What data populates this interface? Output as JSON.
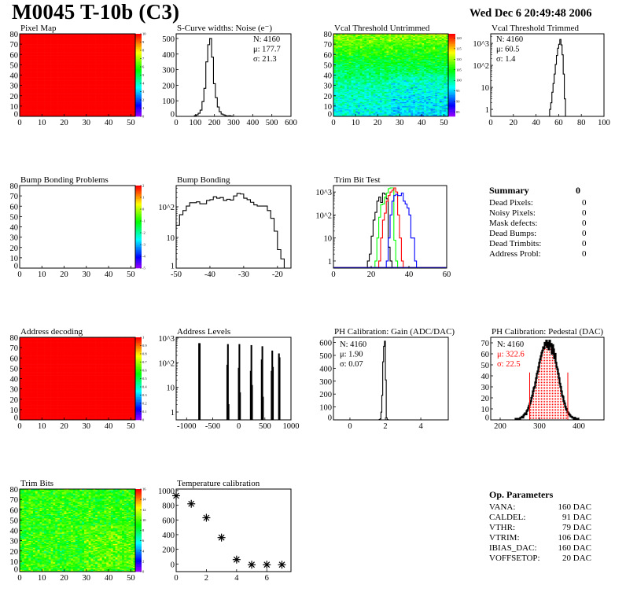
{
  "header": {
    "title": "M0045 T-10b (C3)",
    "date": "Wed Dec  6 20:49:48 2006"
  },
  "summary": {
    "title": "Summary",
    "total": "0",
    "rows": [
      {
        "label": "Dead Pixels:",
        "value": "0"
      },
      {
        "label": "Noisy Pixels:",
        "value": "0"
      },
      {
        "label": "Mask defects:",
        "value": "0"
      },
      {
        "label": "Dead Bumps:",
        "value": "0"
      },
      {
        "label": "Dead Trimbits:",
        "value": "0"
      },
      {
        "label": "Address Probl:",
        "value": "0"
      }
    ]
  },
  "op_parameters": {
    "title": "Op. Parameters",
    "rows": [
      {
        "label": "VANA:",
        "value": "160 DAC"
      },
      {
        "label": "CALDEL:",
        "value": "91 DAC"
      },
      {
        "label": "VTHR:",
        "value": "79 DAC"
      },
      {
        "label": "VTRIM:",
        "value": "106 DAC"
      },
      {
        "label": "IBIAS_DAC:",
        "value": "160 DAC"
      },
      {
        "label": "VOFFSETOP:",
        "value": "20 DAC"
      }
    ]
  },
  "colors": {
    "histogram": "#000000",
    "fit": "#ff0000",
    "trim_series": [
      "#000000",
      "#00ff00",
      "#ff0000",
      "#0000ff"
    ]
  },
  "chart_data": [
    {
      "id": "pixel-map",
      "type": "heatmap",
      "title": "Pixel Map",
      "xlim": [
        0,
        52
      ],
      "ylim": [
        0,
        80
      ],
      "xticks": [
        0,
        10,
        20,
        30,
        40,
        50
      ],
      "yticks": [
        0,
        10,
        20,
        30,
        40,
        50,
        60,
        70,
        80
      ],
      "zlim": [
        0,
        10
      ],
      "zticks": [
        0,
        1,
        2,
        3,
        4,
        5,
        6,
        7,
        8,
        9,
        10
      ],
      "uniform_value": 10
    },
    {
      "id": "noise",
      "type": "bar",
      "title": "S-Curve widths: Noise (e⁻)",
      "xlim": [
        0,
        600
      ],
      "ylim": [
        0,
        530
      ],
      "xticks": [
        0,
        100,
        200,
        300,
        400,
        500,
        600
      ],
      "yticks": [
        0,
        100,
        200,
        300,
        400,
        500
      ],
      "bin_width": 10,
      "bin_start": 95,
      "values": [
        5,
        10,
        20,
        40,
        95,
        180,
        350,
        460,
        500,
        380,
        210,
        120,
        60,
        30,
        15,
        10,
        5,
        3,
        4,
        2
      ],
      "stats": [
        "N: 4160",
        "μ: 177.7",
        "σ: 21.3"
      ]
    },
    {
      "id": "vcal-untrimmed",
      "type": "heatmap",
      "title": "Vcal Threshold Untrimmed",
      "xlim": [
        0,
        52
      ],
      "ylim": [
        0,
        80
      ],
      "xticks": [
        0,
        10,
        20,
        30,
        40,
        50
      ],
      "yticks": [
        0,
        10,
        20,
        30,
        40,
        50,
        60,
        70,
        80
      ],
      "zlim": [
        83,
        122
      ],
      "zticks": [
        85,
        90,
        95,
        100,
        105,
        110,
        115,
        120
      ],
      "z_bottom_mean": 97,
      "z_top_mean": 110
    },
    {
      "id": "vcal-trimmed",
      "type": "bar",
      "title": "Vcal Threshold Trimmed",
      "log_y": true,
      "xlim": [
        0,
        100
      ],
      "ylim": [
        0.48,
        2700
      ],
      "xticks": [
        0,
        20,
        40,
        60,
        80,
        100
      ],
      "yticks": [
        1,
        10,
        100,
        1000
      ],
      "ytick_labels": [
        "1",
        "10",
        "10^2",
        "10^3"
      ],
      "bin_width": 1,
      "bin_start": 52,
      "values": [
        1,
        2,
        6,
        15,
        40,
        110,
        280,
        600,
        900,
        1500,
        850,
        300,
        40,
        3
      ],
      "stats": [
        "N: 4160",
        "μ: 60.5",
        "σ:  1.4"
      ]
    },
    {
      "id": "bump-problems",
      "type": "heatmap",
      "title": "Bump Bonding Problems",
      "xlim": [
        0,
        52
      ],
      "ylim": [
        0,
        80
      ],
      "xticks": [
        0,
        10,
        20,
        30,
        40,
        50
      ],
      "yticks": [
        0,
        10,
        20,
        30,
        40,
        50,
        60,
        70,
        80
      ],
      "zlim": [
        -5,
        2
      ],
      "zticks": [
        -5,
        -4,
        -3,
        -2,
        -1,
        0,
        1,
        2
      ],
      "empty": true
    },
    {
      "id": "bump-bonding",
      "type": "bar",
      "title": "Bump Bonding",
      "log_y": true,
      "xlim": [
        -50,
        -16
      ],
      "ylim": [
        1,
        490
      ],
      "xticks": [
        -50,
        -40,
        -30,
        -20
      ],
      "yticks": [
        1,
        10,
        100
      ],
      "ytick_labels": [
        "1",
        "10",
        "10^2"
      ],
      "bin_width": 1,
      "bin_start": -50,
      "values": [
        25,
        55,
        75,
        105,
        135,
        135,
        145,
        125,
        125,
        160,
        170,
        210,
        190,
        200,
        160,
        175,
        165,
        225,
        270,
        260,
        190,
        170,
        140,
        115,
        105,
        105,
        105,
        75,
        42,
        16,
        4,
        2
      ]
    },
    {
      "id": "trim-bit-test",
      "type": "bar",
      "title": "Trim Bit Test",
      "log_y": true,
      "xlim": [
        0,
        60
      ],
      "ylim": [
        0.49,
        1900
      ],
      "xticks": [
        0,
        20,
        40,
        60
      ],
      "yticks": [
        1,
        10,
        100,
        1000
      ],
      "ytick_labels": [
        "1",
        "10",
        "10^2",
        "10^3"
      ],
      "bin_width": 1,
      "series": [
        {
          "start": 18,
          "values": [
            1,
            2,
            12,
            60,
            130,
            400,
            600,
            350,
            900,
            800,
            500,
            4,
            1
          ]
        },
        {
          "start": 22,
          "values": [
            1,
            10,
            80,
            280,
            300,
            600,
            900,
            1400,
            1500,
            1500,
            8,
            1
          ]
        },
        {
          "start": 24,
          "values": [
            1,
            10,
            60,
            120,
            400,
            700,
            1000,
            1200,
            1500,
            1000,
            100,
            10,
            1
          ]
        },
        {
          "start": 28,
          "values": [
            1,
            10,
            100,
            400,
            700,
            800,
            700,
            700,
            900,
            400,
            300,
            200,
            100,
            10,
            10,
            1
          ]
        }
      ]
    },
    {
      "id": "address-decoding",
      "type": "heatmap",
      "title": "Address decoding",
      "xlim": [
        0,
        52
      ],
      "ylim": [
        0,
        80
      ],
      "xticks": [
        0,
        10,
        20,
        30,
        40,
        50
      ],
      "yticks": [
        0,
        10,
        20,
        30,
        40,
        50,
        60,
        70,
        80
      ],
      "zlim": [
        0,
        1
      ],
      "zticks": [
        0,
        0.1,
        0.2,
        0.3,
        0.4,
        0.5,
        0.6,
        0.7,
        0.8,
        0.9,
        1
      ],
      "uniform_value": 1
    },
    {
      "id": "address-levels",
      "type": "bar",
      "title": "Address Levels",
      "log_y": true,
      "xlim": [
        -1200,
        1000
      ],
      "ylim": [
        0.48,
        1080
      ],
      "xticks": [
        -1000,
        -500,
        0,
        500,
        1000
      ],
      "yticks": [
        1,
        10,
        100,
        1000
      ],
      "ytick_labels": [
        "1",
        "10",
        "10^2",
        "10^3"
      ],
      "bin_width": 12,
      "bins": [
        {
          "x": -762,
          "v": 600
        },
        {
          "x": -750,
          "v": 600
        },
        {
          "x": -222,
          "v": 80
        },
        {
          "x": -210,
          "v": 550
        },
        {
          "x": -198,
          "v": 2
        },
        {
          "x": -2,
          "v": 60
        },
        {
          "x": 10,
          "v": 550
        },
        {
          "x": 22,
          "v": 6
        },
        {
          "x": 228,
          "v": 45
        },
        {
          "x": 240,
          "v": 500
        },
        {
          "x": 252,
          "v": 12
        },
        {
          "x": 438,
          "v": 130
        },
        {
          "x": 450,
          "v": 450
        },
        {
          "x": 462,
          "v": 4
        },
        {
          "x": 628,
          "v": 45
        },
        {
          "x": 640,
          "v": 300
        },
        {
          "x": 652,
          "v": 65
        },
        {
          "x": 768,
          "v": 230
        },
        {
          "x": 780,
          "v": 160
        }
      ]
    },
    {
      "id": "ph-gain",
      "type": "bar",
      "title": "PH Calibration: Gain (ADC/DAC)",
      "xlim": [
        -0.93,
        5.55
      ],
      "ylim": [
        0,
        640
      ],
      "xticks": [
        0,
        2,
        4
      ],
      "yticks": [
        0,
        100,
        200,
        300,
        400,
        500,
        600
      ],
      "bin_width": 0.05,
      "bin_start": 1.65,
      "values": [
        3,
        8,
        60,
        190,
        450,
        570,
        610,
        310,
        15,
        2
      ],
      "stats": [
        "N: 4160",
        "μ: 1.90",
        "σ: 0.07"
      ]
    },
    {
      "id": "ph-pedestal",
      "type": "bar",
      "title": "PH Calibration: Pedestal (DAC)",
      "xlim": [
        176,
        464
      ],
      "ylim": [
        0,
        75
      ],
      "xticks": [
        200,
        300,
        400
      ],
      "yticks": [
        0,
        10,
        20,
        30,
        40,
        50,
        60,
        70
      ],
      "bin_width": 2,
      "bin_start": 239,
      "values": [
        1,
        0,
        0,
        1,
        1,
        1,
        2,
        2,
        3,
        2,
        4,
        5,
        6,
        5,
        8,
        9,
        11,
        13,
        15,
        17,
        20,
        22,
        26,
        29,
        30,
        34,
        38,
        42,
        44,
        48,
        52,
        55,
        58,
        61,
        63,
        66,
        65,
        70,
        68,
        72,
        66,
        70,
        64,
        72,
        67,
        69,
        60,
        68,
        64,
        56,
        60,
        52,
        48,
        46,
        42,
        38,
        33,
        30,
        26,
        22,
        21,
        17,
        15,
        12,
        10,
        9,
        7,
        6,
        5,
        4,
        3,
        3,
        2,
        2,
        1,
        2,
        1,
        1,
        0,
        1
      ],
      "fit_range": [
        275,
        372
      ],
      "fit_marker_height": 43,
      "stats": [
        "N: 4160",
        "μ: 322.6",
        "σ: 22.5"
      ]
    },
    {
      "id": "trim-bits",
      "type": "heatmap",
      "title": "Trim Bits",
      "xlim": [
        0,
        52
      ],
      "ylim": [
        0,
        80
      ],
      "xticks": [
        0,
        10,
        20,
        30,
        40,
        50
      ],
      "yticks": [
        0,
        10,
        20,
        30,
        40,
        50,
        60,
        70,
        80
      ],
      "zlim": [
        0,
        16
      ],
      "zticks": [
        0,
        2,
        4,
        6,
        8,
        10,
        12,
        14,
        16
      ],
      "z_mean": 9.5
    },
    {
      "id": "temperature",
      "type": "scatter",
      "title": "Temperature calibration",
      "xlim": [
        0,
        7.6
      ],
      "ylim": [
        -104,
        1021
      ],
      "xticks": [
        0,
        2,
        4,
        6
      ],
      "yticks": [
        0,
        200,
        400,
        600,
        800,
        1000
      ],
      "marker": "asterisk",
      "x": [
        0,
        1,
        2,
        3,
        4,
        5,
        6,
        7
      ],
      "y": [
        930,
        820,
        630,
        360,
        60,
        -10,
        -10,
        -10
      ]
    }
  ]
}
